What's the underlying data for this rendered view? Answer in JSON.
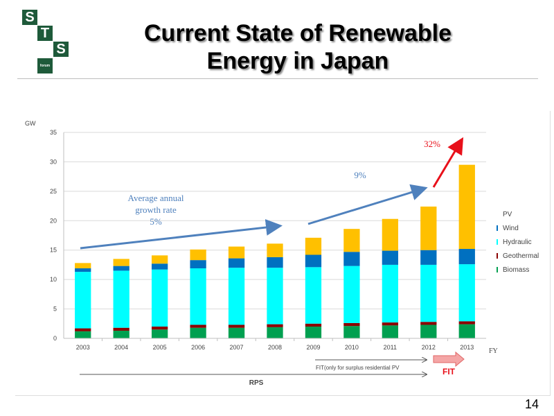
{
  "slide": {
    "logo_letters": [
      "S",
      "T",
      "S",
      "forum"
    ],
    "title_line1": "Current State of Renewable",
    "title_line2": "Energy in Japan",
    "page_number": "14"
  },
  "colors": {
    "logo_green": "#1e5a3a",
    "pv": "#ffc000",
    "wind": "#0070c0",
    "hydraulic": "#00ffff",
    "geothermal": "#8b0000",
    "biomass": "#00a050",
    "trend_arrow": "#4f81bd",
    "growth_arrow": "#e8101a",
    "fit_arrow_fill": "#f4a6a6"
  },
  "chart_data": {
    "type": "bar",
    "stacked": true,
    "title": "",
    "xlabel": "FY",
    "ylabel": "GW",
    "ylim": [
      0,
      35
    ],
    "yticks": [
      0,
      5,
      10,
      15,
      20,
      25,
      30,
      35
    ],
    "grid": true,
    "legend_position": "right",
    "categories": [
      "2003",
      "2004",
      "2005",
      "2006",
      "2007",
      "2008",
      "2009",
      "2010",
      "2011",
      "2012",
      "2013"
    ],
    "series": [
      {
        "name": "Biomass",
        "values": [
          1.2,
          1.3,
          1.5,
          1.8,
          1.8,
          1.9,
          2.0,
          2.1,
          2.2,
          2.3,
          2.4
        ]
      },
      {
        "name": "Geothermal",
        "values": [
          0.5,
          0.5,
          0.5,
          0.5,
          0.5,
          0.5,
          0.5,
          0.5,
          0.5,
          0.5,
          0.5
        ]
      },
      {
        "name": "Hydraulic",
        "values": [
          9.6,
          9.7,
          9.7,
          9.6,
          9.7,
          9.6,
          9.6,
          9.7,
          9.8,
          9.7,
          9.7
        ]
      },
      {
        "name": "Wind",
        "values": [
          0.6,
          0.8,
          1.0,
          1.4,
          1.6,
          1.8,
          2.1,
          2.4,
          2.4,
          2.5,
          2.6
        ]
      },
      {
        "name": "PV",
        "values": [
          0.9,
          1.2,
          1.4,
          1.8,
          2.0,
          2.3,
          2.9,
          3.9,
          5.4,
          7.4,
          14.3
        ]
      }
    ],
    "legend": [
      "PV",
      "Wind",
      "Hydraulic",
      "Geothermal",
      "Biomass"
    ],
    "annotations": {
      "avg_growth_line1": "Average annual",
      "avg_growth_line2": "growth rate",
      "avg_growth_value": "5%",
      "mid_growth_value": "9%",
      "recent_growth_value": "32%",
      "fit_surplus_label": "FIT(only for surplus residential PV",
      "fit_label": "FIT",
      "rps_label": "RPS"
    }
  }
}
